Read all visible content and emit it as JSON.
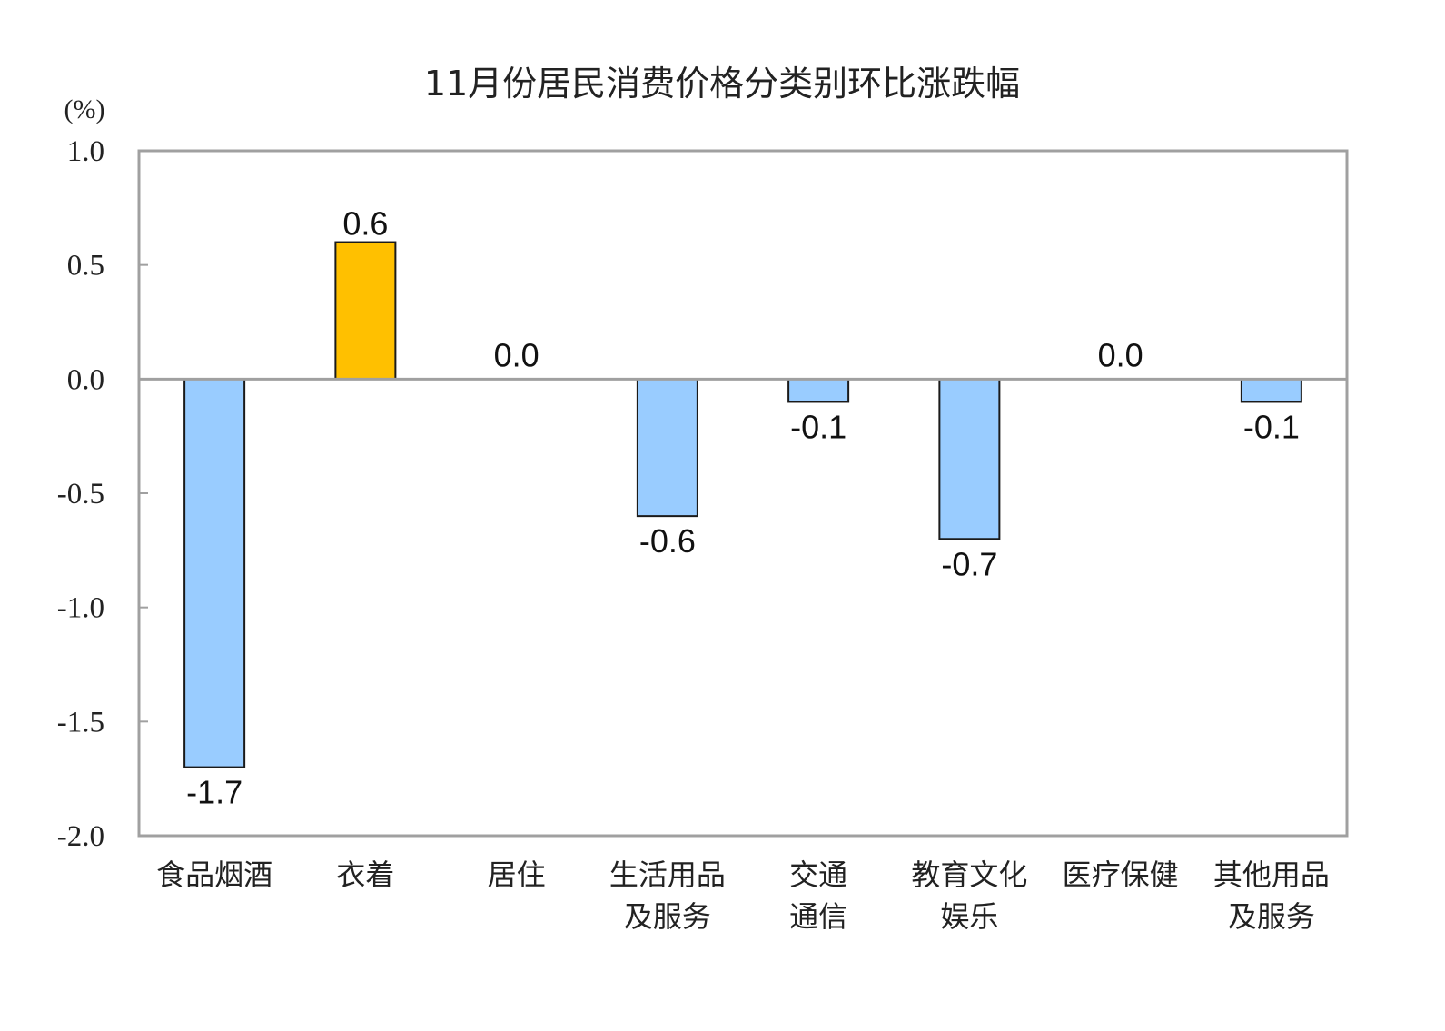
{
  "chart_data": {
    "type": "bar",
    "title": "11月份居民消费价格分类别环比涨跌幅",
    "ylabel": "(%)",
    "xlabel": "",
    "ylim": [
      -2.0,
      1.0
    ],
    "yticks": [
      "1.0",
      "0.5",
      "0.0",
      "-0.5",
      "-1.0",
      "-1.5",
      "-2.0"
    ],
    "grid": false,
    "categories": [
      [
        "食品烟酒"
      ],
      [
        "衣着"
      ],
      [
        "居住"
      ],
      [
        "生活用品",
        "及服务"
      ],
      [
        "交通",
        "通信"
      ],
      [
        "教育文化",
        "娱乐"
      ],
      [
        "医疗保健"
      ],
      [
        "其他用品",
        "及服务"
      ]
    ],
    "values": [
      -1.7,
      0.6,
      0.0,
      -0.6,
      -0.1,
      -0.7,
      0.0,
      -0.1
    ],
    "data_labels": [
      "-1.7",
      "0.6",
      "0.0",
      "-0.6",
      "-0.1",
      "-0.7",
      "0.0",
      "-0.1"
    ],
    "colors": {
      "positive": "#FFC000",
      "negative": "#99CCFF",
      "axis": "#A0A0A0",
      "bar_border": "#1A1A1A"
    }
  }
}
